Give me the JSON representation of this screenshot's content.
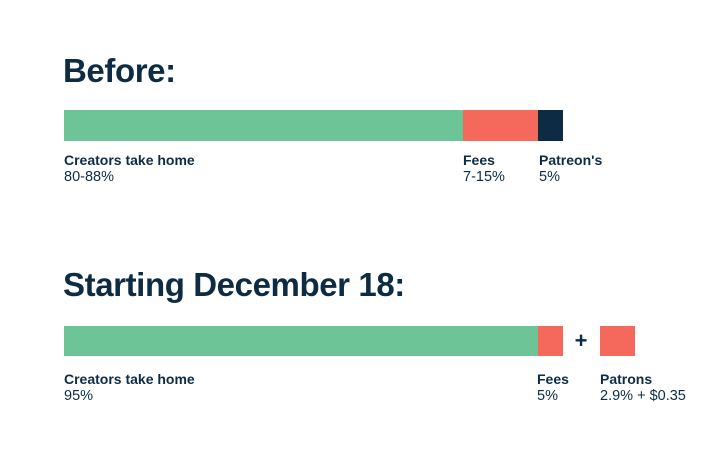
{
  "page": {
    "background": "#FFFFFF"
  },
  "colors": {
    "green": "#6CC497",
    "coral": "#F4695B",
    "navy": "#0D2C44"
  },
  "before": {
    "title": "Before:",
    "labels": [
      {
        "name": "Creators take home",
        "value": "80-88%"
      },
      {
        "name": "Fees",
        "value": "7-15%"
      },
      {
        "name": "Patreon's",
        "value": "5%"
      }
    ]
  },
  "after": {
    "title": "Starting December 18:",
    "plus": "+",
    "labels": [
      {
        "name": "Creators take home",
        "value": "95%"
      },
      {
        "name": "Fees",
        "value": "5%"
      },
      {
        "name": "Patrons",
        "value": "2.9% + $0.35"
      }
    ]
  },
  "chart_data": [
    {
      "type": "bar",
      "orientation": "horizontal",
      "stacked": true,
      "title": "Before:",
      "total_pct": 100,
      "segments": [
        {
          "label": "Creators take home",
          "value_label": "80-88%",
          "pct": 80,
          "color": "#6CC497"
        },
        {
          "label": "Fees",
          "value_label": "7-15%",
          "pct": 15,
          "color": "#F4695B"
        },
        {
          "label": "Patreon's",
          "value_label": "5%",
          "pct": 5,
          "color": "#0D2C44"
        }
      ]
    },
    {
      "type": "bar",
      "orientation": "horizontal",
      "stacked": true,
      "title": "Starting December 18:",
      "total_pct": 100,
      "segments": [
        {
          "label": "Creators take home",
          "value_label": "95%",
          "pct": 95,
          "color": "#6CC497"
        },
        {
          "label": "Fees",
          "value_label": "5%",
          "pct": 5,
          "color": "#F4695B"
        }
      ],
      "addon": {
        "label": "Patrons",
        "value_label": "2.9% + $0.35",
        "color": "#F4695B",
        "connector": "+"
      }
    }
  ]
}
